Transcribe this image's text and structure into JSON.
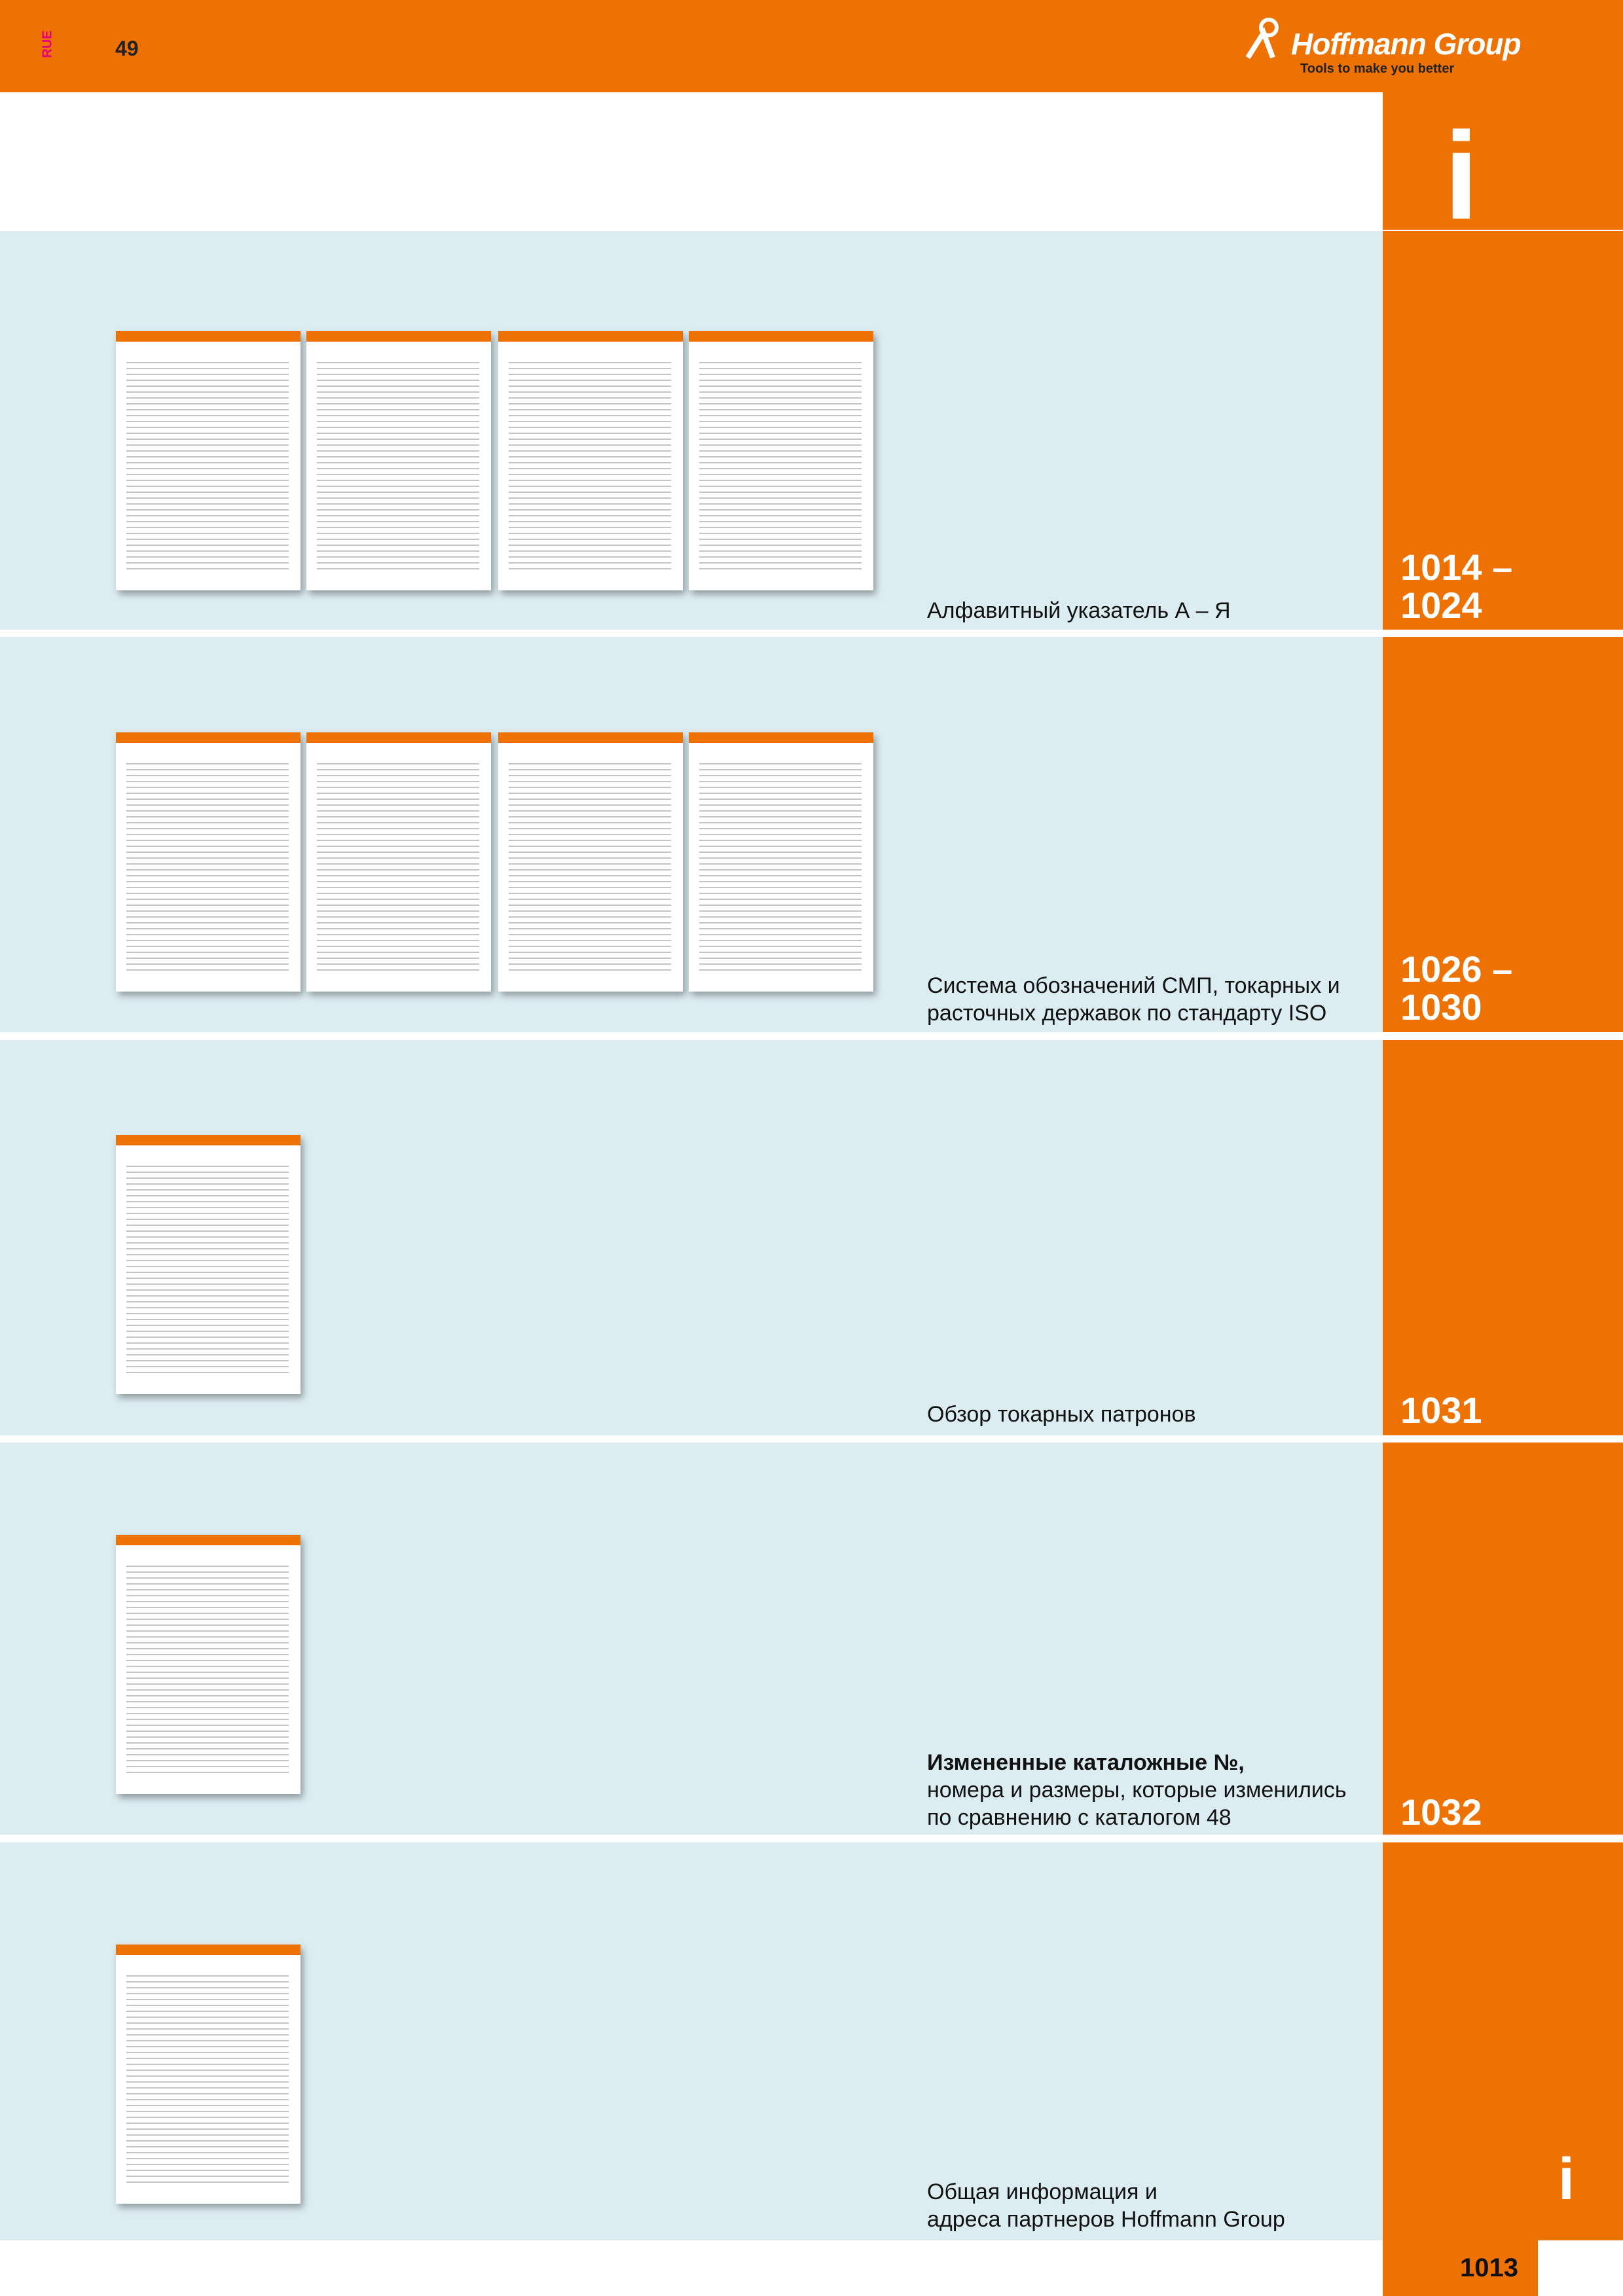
{
  "header": {
    "section_code": "RUE",
    "page": "49",
    "brand": "Hoffmann Group",
    "tagline": "Tools to make you better"
  },
  "tab_icon": "i",
  "sections": [
    {
      "lines": [
        "Алфавитный указатель А – Я"
      ],
      "pages": [
        "1014 –",
        "1024"
      ]
    },
    {
      "lines": [
        "Система обозначений СМП, токарных и",
        "расточных державок по стандарту ISO"
      ],
      "pages": [
        "1026 –",
        "1030"
      ]
    },
    {
      "lines": [
        "Обзор токарных патронов"
      ],
      "pages": [
        "1031"
      ]
    },
    {
      "heading": "Измененные каталожные №,",
      "lines": [
        "номера и размеры, которые изменились",
        "по сравнению с каталогом 48"
      ],
      "pages": [
        "1032"
      ]
    },
    {
      "lines": [
        "Общая информация и",
        "адреса партнеров Hoffmann Group"
      ],
      "pages": [
        "i"
      ]
    }
  ],
  "footer": {
    "page_number": "1013"
  }
}
